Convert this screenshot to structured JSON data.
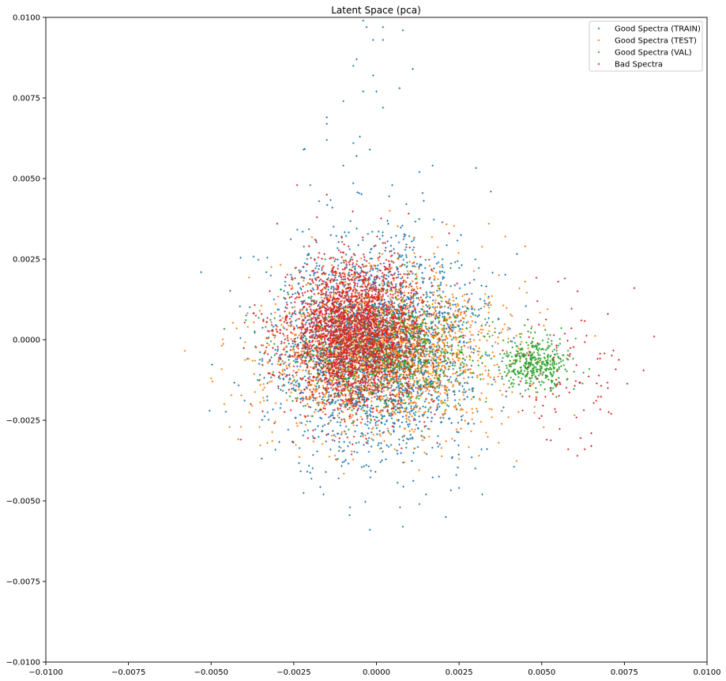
{
  "chart_data": {
    "type": "scatter",
    "title": "Latent Space (pca)",
    "xlabel": "",
    "ylabel": "",
    "xlim": [
      -0.01,
      0.01
    ],
    "ylim": [
      -0.01,
      0.01
    ],
    "grid": false,
    "legend_position": "top-right",
    "x_ticks": [
      -0.01,
      -0.0075,
      -0.005,
      -0.0025,
      0.0,
      0.0025,
      0.005,
      0.0075,
      0.01
    ],
    "x_tick_labels": [
      "−0.0100",
      "−0.0075",
      "−0.0050",
      "−0.0025",
      "0.0000",
      "0.0025",
      "0.0050",
      "0.0075",
      "0.0100"
    ],
    "y_ticks": [
      0.01,
      0.0075,
      0.005,
      0.0025,
      0.0,
      -0.0025,
      -0.005,
      -0.0075,
      -0.01
    ],
    "y_tick_labels": [
      "0.0100",
      "0.0075",
      "0.0050",
      "0.0025",
      "0.0000",
      "−0.0025",
      "−0.0050",
      "−0.0075",
      "−0.0100"
    ],
    "series": [
      {
        "name": "Good Spectra (TRAIN)",
        "color": "#1f77b4",
        "marker": "+",
        "cloud": {
          "mean": [
            -0.0001,
            -0.0002
          ],
          "std": [
            0.0015,
            0.0016
          ],
          "count": 2600,
          "seed": 11
        },
        "points": [
          [
            -0.0004,
            0.0099
          ],
          [
            -0.0003,
            0.0097
          ],
          [
            0.0002,
            0.0097
          ],
          [
            0.0008,
            0.0096
          ],
          [
            -0.0001,
            0.0093
          ],
          [
            0.0002,
            0.0093
          ],
          [
            0.0011,
            0.0084
          ],
          [
            -0.0007,
            0.0085
          ],
          [
            -0.0006,
            0.0087
          ],
          [
            -0.0001,
            0.0082
          ],
          [
            0.0007,
            0.0078
          ],
          [
            -0.0004,
            0.0077
          ],
          [
            0.0,
            0.0077
          ],
          [
            -0.001,
            0.0074
          ],
          [
            0.0002,
            0.0072
          ],
          [
            -0.0015,
            0.0069
          ],
          [
            -0.0015,
            0.0067
          ],
          [
            -0.0007,
            0.0061
          ],
          [
            -0.0015,
            0.0062
          ],
          [
            -0.0005,
            0.0063
          ],
          [
            -0.0002,
            0.0059
          ],
          [
            -0.0022,
            0.0059
          ],
          [
            -0.0006,
            0.0057
          ],
          [
            0.0017,
            0.0054
          ],
          [
            0.0013,
            0.0052
          ],
          [
            -0.001,
            0.0054
          ],
          [
            -0.002,
            0.0048
          ],
          [
            -0.0002,
            -0.0059
          ],
          [
            0.0008,
            -0.0058
          ],
          [
            0.0021,
            -0.0055
          ],
          [
            0.0013,
            -0.0051
          ],
          [
            -0.0008,
            -0.0052
          ],
          [
            0.0015,
            -0.0048
          ],
          [
            0.0025,
            -0.0046
          ],
          [
            -0.0016,
            -0.0048
          ],
          [
            0.0032,
            -0.0048
          ]
        ]
      },
      {
        "name": "Good Spectra (TEST)",
        "color": "#ff7f0e",
        "marker": "+",
        "cloud": {
          "mean": [
            0.0002,
            -0.0004
          ],
          "std": [
            0.0017,
            0.0012
          ],
          "count": 2000,
          "seed": 23
        },
        "points": [
          [
            -0.005,
            -0.0012
          ],
          [
            -0.0046,
            -0.002
          ],
          [
            -0.0041,
            -0.0027
          ],
          [
            0.0045,
            0.0029
          ],
          [
            0.0039,
            0.0032
          ],
          [
            0.0034,
            0.0036
          ],
          [
            0.0045,
            0.0018
          ],
          [
            0.0037,
            -0.0032
          ],
          [
            0.0031,
            -0.0036
          ],
          [
            0.0025,
            -0.0037
          ],
          [
            -0.0033,
            -0.0032
          ],
          [
            0.0004,
            0.004
          ]
        ]
      },
      {
        "name": "Good Spectra (VAL)",
        "color": "#2ca02c",
        "marker": "+",
        "cloud": {
          "mean": [
            0.0001,
            -0.0003
          ],
          "std": [
            0.0014,
            0.0009
          ],
          "count": 900,
          "seed": 37
        },
        "cloud2": {
          "mean": [
            0.0048,
            -0.0007
          ],
          "std": [
            0.0005,
            0.00045
          ],
          "count": 380,
          "seed": 41
        },
        "points": []
      },
      {
        "name": "Bad Spectra",
        "color": "#d62728",
        "marker": "+",
        "cloud": {
          "mean": [
            -0.0006,
            0.0002
          ],
          "std": [
            0.001,
            0.0011
          ],
          "count": 2600,
          "seed": 53
        },
        "cloud2": {
          "mean": [
            0.0058,
            -0.001
          ],
          "std": [
            0.0009,
            0.001
          ],
          "count": 90,
          "seed": 59
        },
        "points": [
          [
            0.0084,
            0.0001
          ],
          [
            0.0078,
            0.0016
          ],
          [
            0.007,
            -0.0015
          ],
          [
            0.0071,
            -0.0023
          ],
          [
            0.0065,
            -0.0033
          ],
          [
            0.0065,
            -0.0029
          ],
          [
            0.0063,
            -0.0034
          ],
          [
            0.0058,
            -0.0034
          ],
          [
            0.0057,
            0.0019
          ],
          [
            0.0055,
            0.0018
          ],
          [
            0.0062,
            0.0006
          ],
          [
            0.007,
            0.0008
          ],
          [
            -0.0024,
            0.0048
          ],
          [
            -0.0015,
            0.0045
          ],
          [
            -0.0018,
            0.0038
          ],
          [
            -0.003,
            0.0036
          ],
          [
            -0.0038,
            -0.002
          ],
          [
            -0.0041,
            -0.0031
          ],
          [
            0.0022,
            0.0033
          ]
        ]
      }
    ]
  }
}
